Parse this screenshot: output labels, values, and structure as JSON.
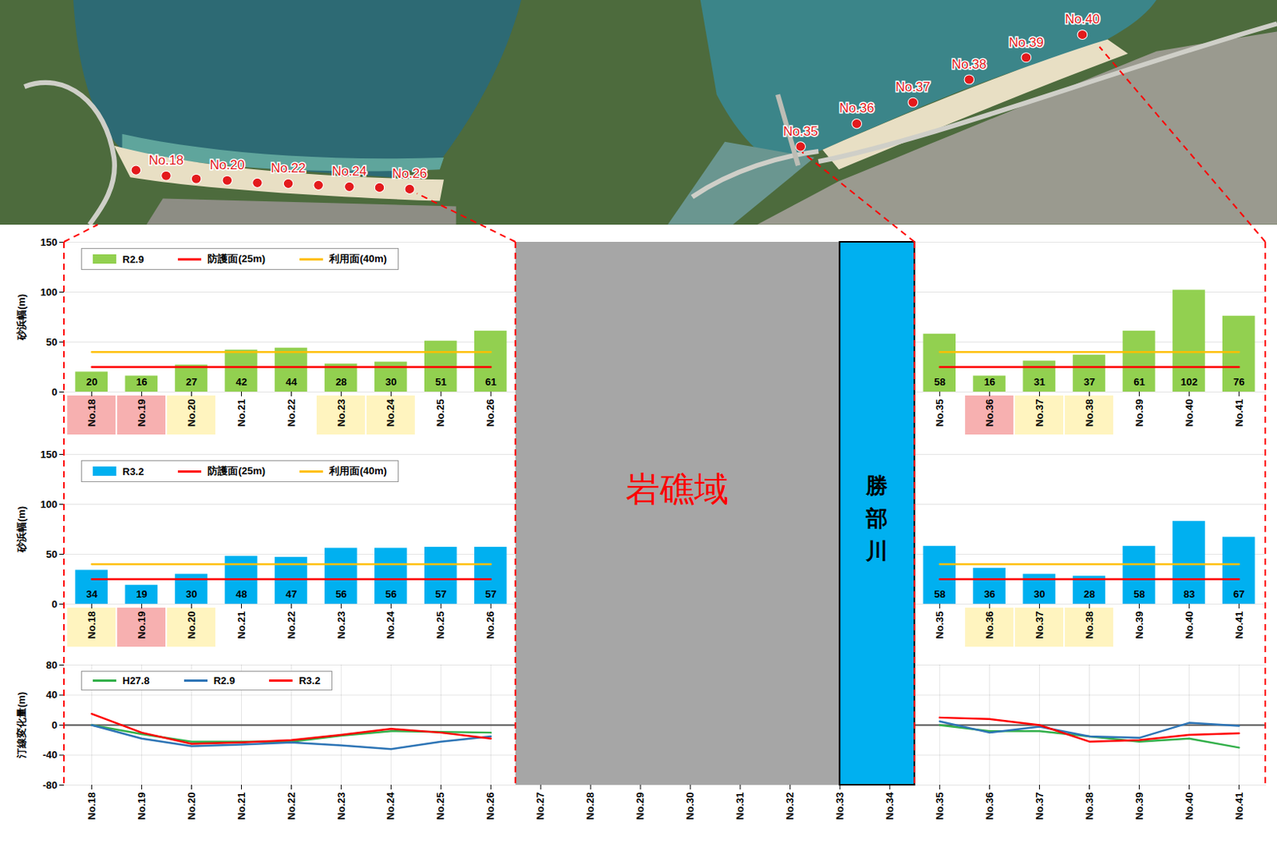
{
  "chart_data": [
    {
      "type": "bar",
      "categories": [
        "No.18",
        "No.19",
        "No.20",
        "No.21",
        "No.22",
        "No.23",
        "No.24",
        "No.25",
        "No.26",
        null,
        null,
        null,
        null,
        null,
        null,
        null,
        null,
        "No.35",
        "No.36",
        "No.37",
        "No.38",
        "No.39",
        "No.40",
        "No.41"
      ],
      "series": [
        {
          "name": "R2.9",
          "type": "bar",
          "color": "#92d050",
          "values": [
            20,
            16,
            27,
            42,
            44,
            28,
            30,
            51,
            61,
            null,
            null,
            null,
            null,
            null,
            null,
            null,
            null,
            58,
            16,
            31,
            37,
            61,
            102,
            76
          ]
        },
        {
          "name": "防護面(25m)",
          "type": "line",
          "color": "#ff0000",
          "values": [
            25,
            25,
            25,
            25,
            25,
            25,
            25,
            25,
            25,
            null,
            null,
            null,
            null,
            null,
            null,
            null,
            null,
            25,
            25,
            25,
            25,
            25,
            25,
            25
          ]
        },
        {
          "name": "利用面(40m)",
          "type": "line",
          "color": "#ffc000",
          "values": [
            40,
            40,
            40,
            40,
            40,
            40,
            40,
            40,
            40,
            null,
            null,
            null,
            null,
            null,
            null,
            null,
            null,
            40,
            40,
            40,
            40,
            40,
            40,
            40
          ]
        }
      ],
      "y_label": "砂浜幅(m)",
      "ylim": [
        0,
        150
      ],
      "yticks": [
        0,
        50,
        100,
        150
      ],
      "grid": true,
      "legend": "top-left",
      "data_labels": true
    },
    {
      "type": "bar",
      "categories": [
        "No.18",
        "No.19",
        "No.20",
        "No.21",
        "No.22",
        "No.23",
        "No.24",
        "No.25",
        "No.26",
        null,
        null,
        null,
        null,
        null,
        null,
        null,
        null,
        "No.35",
        "No.36",
        "No.37",
        "No.38",
        "No.39",
        "No.40",
        "No.41"
      ],
      "series": [
        {
          "name": "R3.2",
          "type": "bar",
          "color": "#00b0f0",
          "values": [
            34,
            19,
            30,
            48,
            47,
            56,
            56,
            57,
            57,
            null,
            null,
            null,
            null,
            null,
            null,
            null,
            null,
            58,
            36,
            30,
            28,
            58,
            83,
            67
          ]
        },
        {
          "name": "防護面(25m)",
          "type": "line",
          "color": "#ff0000",
          "values": [
            25,
            25,
            25,
            25,
            25,
            25,
            25,
            25,
            25,
            null,
            null,
            null,
            null,
            null,
            null,
            null,
            null,
            25,
            25,
            25,
            25,
            25,
            25,
            25
          ]
        },
        {
          "name": "利用面(40m)",
          "type": "line",
          "color": "#ffc000",
          "values": [
            40,
            40,
            40,
            40,
            40,
            40,
            40,
            40,
            40,
            null,
            null,
            null,
            null,
            null,
            null,
            null,
            null,
            40,
            40,
            40,
            40,
            40,
            40,
            40
          ]
        }
      ],
      "y_label": "砂浜幅(m)",
      "ylim": [
        0,
        150
      ],
      "yticks": [
        0,
        50,
        100,
        150
      ],
      "grid": true,
      "legend": "top-left",
      "data_labels": true
    },
    {
      "type": "line",
      "categories": [
        "No.18",
        "No.19",
        "No.20",
        "No.21",
        "No.22",
        "No.23",
        "No.24",
        "No.25",
        "No.26",
        "No.27",
        "No.28",
        "No.29",
        "No.30",
        "No.31",
        "No.32",
        "No.33",
        "No.34",
        "No.35",
        "No.36",
        "No.37",
        "No.38",
        "No.39",
        "No.40",
        "No.41"
      ],
      "series": [
        {
          "name": "H27.8",
          "color": "#33b04a",
          "values": [
            0,
            -12,
            -22,
            -22,
            -22,
            -14,
            -8,
            -9,
            -10,
            null,
            null,
            null,
            null,
            null,
            null,
            null,
            null,
            0,
            -8,
            -8,
            -15,
            -22,
            -18,
            -30
          ]
        },
        {
          "name": "R2.9",
          "color": "#2e75b6",
          "values": [
            0,
            -18,
            -28,
            -26,
            -23,
            -27,
            -32,
            -22,
            -15,
            null,
            null,
            null,
            null,
            null,
            null,
            null,
            null,
            5,
            -10,
            -2,
            -15,
            -17,
            3,
            -1
          ]
        },
        {
          "name": "R3.2",
          "color": "#ff0000",
          "values": [
            15,
            -10,
            -25,
            -23,
            -20,
            -13,
            -5,
            -10,
            -18,
            null,
            null,
            null,
            null,
            null,
            null,
            null,
            null,
            10,
            8,
            0,
            -22,
            -20,
            -13,
            -11
          ]
        }
      ],
      "y_label": "汀線変化量(m)",
      "ylim": [
        -80,
        80
      ],
      "yticks": [
        -80,
        -40,
        0,
        40,
        80
      ],
      "grid": true,
      "legend": "top-left"
    }
  ],
  "photo": {
    "labels": [
      "No.18",
      "No.20",
      "No.22",
      "No.24",
      "No.26",
      "No.35",
      "No.36",
      "No.37",
      "No.38",
      "No.39",
      "No.40"
    ]
  },
  "regions": {
    "rock": "岩礁域",
    "river": "勝部川"
  }
}
